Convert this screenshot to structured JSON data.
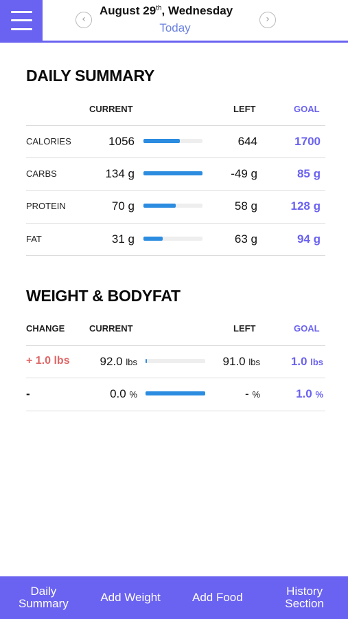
{
  "header": {
    "date_month_day": "August 29",
    "date_suffix": "th",
    "date_weekday": ", Wednesday",
    "subtitle": "Today",
    "prev_icon": "chevron-left-icon",
    "next_icon": "chevron-right-icon",
    "menu_icon": "hamburger-menu-icon"
  },
  "daily_summary": {
    "title": "DAILY SUMMARY",
    "headers": {
      "current": "CURRENT",
      "left": "LEFT",
      "goal": "GOAL"
    },
    "rows": [
      {
        "label": "CALORIES",
        "current": "1056",
        "left": "644",
        "goal": "1700",
        "progress": 0.62
      },
      {
        "label": "CARBS",
        "current": "134 g",
        "left": "-49 g",
        "goal": "85 g",
        "progress": 1.0
      },
      {
        "label": "PROTEIN",
        "current": "70 g",
        "left": "58 g",
        "goal": "128 g",
        "progress": 0.55
      },
      {
        "label": "FAT",
        "current": "31 g",
        "left": "63 g",
        "goal": "94 g",
        "progress": 0.33
      }
    ]
  },
  "weight_bodyfat": {
    "title": "WEIGHT & BODYFAT",
    "headers": {
      "change": "CHANGE",
      "current": "CURRENT",
      "left": "LEFT",
      "goal": "GOAL"
    },
    "rows": [
      {
        "change": "+ 1.0 lbs",
        "current_value": "92.0",
        "current_unit": "lbs",
        "left_value": "91.0",
        "left_unit": "lbs",
        "goal_value": "1.0",
        "goal_unit": "lbs",
        "progress": 0.01
      },
      {
        "change": "-",
        "current_value": "0.0",
        "current_unit": "%",
        "left_value": "-",
        "left_unit": "%",
        "goal_value": "1.0",
        "goal_unit": "%",
        "progress": 1.0
      }
    ]
  },
  "bottom_nav": [
    {
      "label": "Daily Summary"
    },
    {
      "label": "Add Weight"
    },
    {
      "label": "Add Food"
    },
    {
      "label": "History Section"
    }
  ],
  "colors": {
    "accent": "#6a62f0",
    "progress": "#2b8ce0",
    "change_positive": "#e06666",
    "today": "#6a82e0"
  }
}
